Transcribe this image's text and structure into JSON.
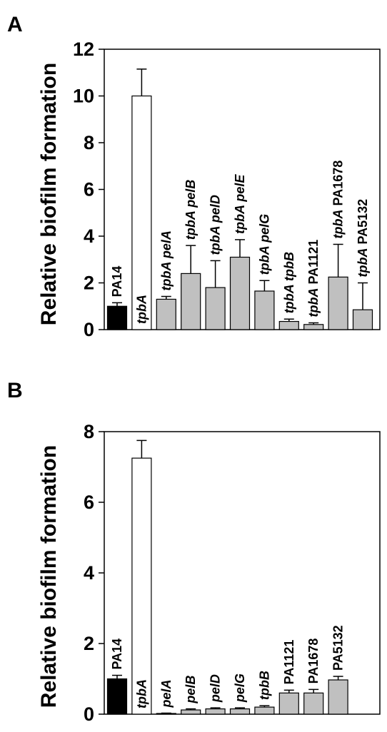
{
  "colors": {
    "black": "#000000",
    "white": "#ffffff",
    "gray": "#c0c0c0"
  },
  "chart_data": [
    {
      "type": "bar",
      "panel": "A",
      "ylabel": "Relative biofilm formation",
      "ylim": [
        0,
        12
      ],
      "yticks": [
        "0",
        "2",
        "4",
        "6",
        "8",
        "10",
        "12"
      ],
      "grid": false,
      "categories": [
        {
          "parts": [
            {
              "t": "PA14",
              "i": false
            }
          ]
        },
        {
          "parts": [
            {
              "t": "tpbA",
              "i": true
            }
          ]
        },
        {
          "parts": [
            {
              "t": "tpbA pelA",
              "i": true
            }
          ]
        },
        {
          "parts": [
            {
              "t": "tpbA pelB",
              "i": true
            }
          ]
        },
        {
          "parts": [
            {
              "t": "tpbA pelD",
              "i": true
            }
          ]
        },
        {
          "parts": [
            {
              "t": "tpbA pelE",
              "i": true
            }
          ]
        },
        {
          "parts": [
            {
              "t": "tpbA pelG",
              "i": true
            }
          ]
        },
        {
          "parts": [
            {
              "t": "tpbA tpbB",
              "i": true
            }
          ]
        },
        {
          "parts": [
            {
              "t": "tpbA",
              "i": true
            },
            {
              "t": " PA1121",
              "i": false
            }
          ]
        },
        {
          "parts": [
            {
              "t": "tpbA",
              "i": true
            },
            {
              "t": " PA1678",
              "i": false
            }
          ]
        },
        {
          "parts": [
            {
              "t": "tpbA",
              "i": true
            },
            {
              "t": " PA5132",
              "i": false
            }
          ]
        }
      ],
      "values": [
        1.0,
        10.0,
        1.3,
        2.4,
        1.8,
        3.1,
        1.65,
        0.35,
        0.22,
        2.25,
        0.85
      ],
      "errors": [
        0.15,
        1.15,
        0.12,
        1.2,
        1.15,
        0.75,
        0.45,
        0.1,
        0.07,
        1.4,
        1.15
      ],
      "fill": [
        "black",
        "white",
        "gray",
        "gray",
        "gray",
        "gray",
        "gray",
        "gray",
        "gray",
        "gray",
        "gray"
      ]
    },
    {
      "type": "bar",
      "panel": "B",
      "ylabel": "Relative biofilm formation",
      "ylim": [
        0,
        8
      ],
      "yticks": [
        "0",
        "2",
        "4",
        "6",
        "8"
      ],
      "grid": false,
      "categories": [
        {
          "parts": [
            {
              "t": "PA14",
              "i": false
            }
          ]
        },
        {
          "parts": [
            {
              "t": "tpbA",
              "i": true
            }
          ]
        },
        {
          "parts": [
            {
              "t": "pelA",
              "i": true
            }
          ]
        },
        {
          "parts": [
            {
              "t": "pelB",
              "i": true
            }
          ]
        },
        {
          "parts": [
            {
              "t": "pelD",
              "i": true
            }
          ]
        },
        {
          "parts": [
            {
              "t": "pelG",
              "i": true
            }
          ]
        },
        {
          "parts": [
            {
              "t": "tpbB",
              "i": true
            }
          ]
        },
        {
          "parts": [
            {
              "t": "PA1121",
              "i": false
            }
          ]
        },
        {
          "parts": [
            {
              "t": "PA1678",
              "i": false
            }
          ]
        },
        {
          "parts": [
            {
              "t": "PA5132",
              "i": false
            }
          ]
        }
      ],
      "values": [
        1.0,
        7.25,
        0.02,
        0.12,
        0.15,
        0.15,
        0.2,
        0.6,
        0.6,
        0.97
      ],
      "errors": [
        0.1,
        0.5,
        0.01,
        0.03,
        0.03,
        0.03,
        0.04,
        0.08,
        0.1,
        0.1
      ],
      "fill": [
        "black",
        "white",
        "gray",
        "gray",
        "gray",
        "gray",
        "gray",
        "gray",
        "gray",
        "gray"
      ]
    }
  ]
}
